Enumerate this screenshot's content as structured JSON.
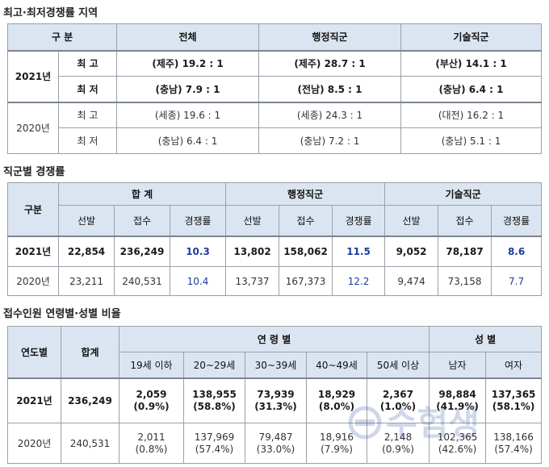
{
  "section1": {
    "title": "최고·최저경쟁률 지역",
    "header": [
      "구 분",
      "전체",
      "행정직군",
      "기술직군"
    ],
    "rows": [
      {
        "year": "2021년",
        "label": "최 고",
        "cells": [
          "(제주)  19.2 : 1",
          "(제주)  28.7 : 1",
          "(부산)  14.1 : 1"
        ]
      },
      {
        "label": "최 저",
        "cells": [
          "(충남)   7.9 : 1",
          "(전남)   8.5 : 1",
          "(충남)   6.4 : 1"
        ]
      },
      {
        "year": "2020년",
        "label": "최 고",
        "cells": [
          "(세종)  19.6 : 1",
          "(세종)  24.3 : 1",
          "(대전)  16.2 : 1"
        ]
      },
      {
        "label": "최 저",
        "cells": [
          "(충남)   6.4 : 1",
          "(충남)   7.2 : 1",
          "(충남)   5.1 : 1"
        ]
      }
    ]
  },
  "section2": {
    "title": "직군별 경쟁률",
    "header_group": [
      "구분",
      "합 계",
      "행정직군",
      "기술직군"
    ],
    "sub_header": [
      "선발",
      "접수",
      "경쟁률",
      "선발",
      "접수",
      "경쟁률",
      "선발",
      "접수",
      "경쟁률"
    ],
    "rows": [
      {
        "year": "2021년",
        "cells": [
          "22,854",
          "236,249",
          "10.3",
          "13,802",
          "158,062",
          "11.5",
          "9,052",
          "78,187",
          "8.6"
        ]
      },
      {
        "year": "2020년",
        "cells": [
          "23,211",
          "240,531",
          "10.4",
          "13,737",
          "167,373",
          "12.2",
          "9,474",
          "73,158",
          "7.7"
        ]
      }
    ]
  },
  "section3": {
    "title": "접수인원 연령별·성별 비율",
    "header_group": [
      "연도별",
      "합계",
      "연 령 별",
      "성 별"
    ],
    "sub_header": [
      "19세 이하",
      "20~29세",
      "30~39세",
      "40~49세",
      "50세 이상",
      "남자",
      "여자"
    ],
    "rows": [
      {
        "year": "2021년",
        "total": "236,249",
        "cells": [
          [
            "2,059",
            "(0.9%)"
          ],
          [
            "138,955",
            "(58.8%)"
          ],
          [
            "73,939",
            "(31.3%)"
          ],
          [
            "18,929",
            "(8.0%)"
          ],
          [
            "2,367",
            "(1.0%)"
          ],
          [
            "98,884",
            "(41.9%)"
          ],
          [
            "137,365",
            "(58.1%)"
          ]
        ]
      },
      {
        "year": "2020년",
        "total": "240,531",
        "cells": [
          [
            "2,011",
            "(0.8%)"
          ],
          [
            "137,969",
            "(57.4%)"
          ],
          [
            "79,487",
            "(33.0%)"
          ],
          [
            "18,916",
            "(7.9%)"
          ],
          [
            "2,148",
            "(0.9%)"
          ],
          [
            "102,365",
            "(42.6%)"
          ],
          [
            "138,166",
            "(57.4%)"
          ]
        ]
      }
    ]
  },
  "watermark": "수험생"
}
